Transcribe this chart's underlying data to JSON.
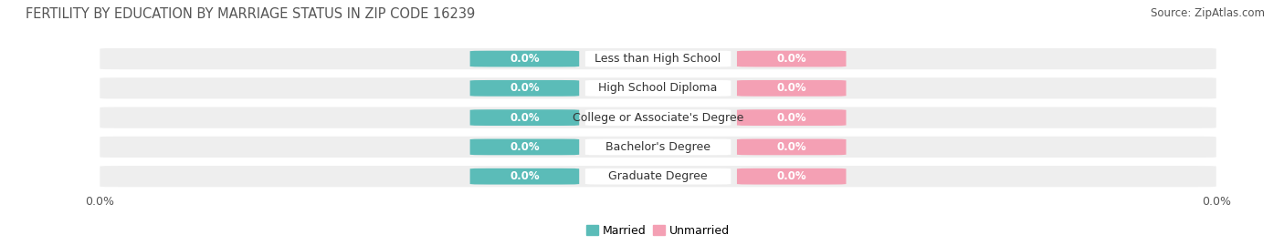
{
  "title": "FERTILITY BY EDUCATION BY MARRIAGE STATUS IN ZIP CODE 16239",
  "source": "Source: ZipAtlas.com",
  "categories": [
    "Less than High School",
    "High School Diploma",
    "College or Associate's Degree",
    "Bachelor's Degree",
    "Graduate Degree"
  ],
  "married_values": [
    0.0,
    0.0,
    0.0,
    0.0,
    0.0
  ],
  "unmarried_values": [
    0.0,
    0.0,
    0.0,
    0.0,
    0.0
  ],
  "married_color": "#5bbcb8",
  "unmarried_color": "#f4a0b4",
  "bar_bg_color": "#eeeeee",
  "legend_married": "Married",
  "legend_unmarried": "Unmarried",
  "title_fontsize": 10.5,
  "label_fontsize": 9,
  "value_fontsize": 8.5,
  "tick_fontsize": 9,
  "source_fontsize": 8.5,
  "axis_label_left": "0.0%",
  "axis_label_right": "0.0%",
  "background_color": "#ffffff"
}
